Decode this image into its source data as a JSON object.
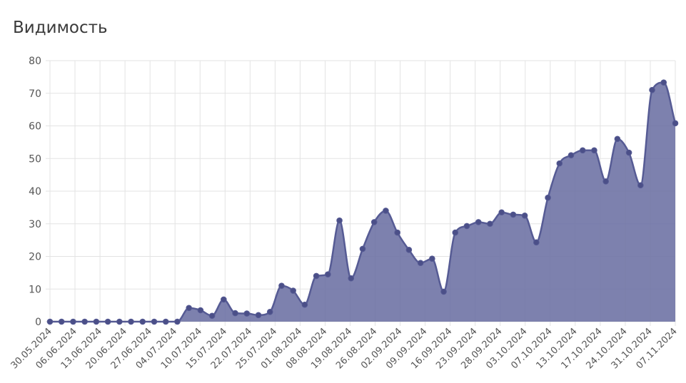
{
  "chart_data": {
    "type": "area",
    "title": "Видимость",
    "xlabel": "",
    "ylabel": "",
    "ylim": [
      0,
      80
    ],
    "yticks": [
      0,
      10,
      20,
      30,
      40,
      50,
      60,
      70,
      80
    ],
    "grid": true,
    "legend": "none",
    "colors": {
      "line": "#565b94",
      "fill": "#6b6fa3",
      "point": "#4b4f88",
      "grid": "#e3e3e3"
    },
    "x_tick_labels": [
      "30.05.2024",
      "06.06.2024",
      "13.06.2024",
      "20.06.2024",
      "27.06.2024",
      "04.07.2024",
      "10.07.2024",
      "15.07.2024",
      "22.07.2024",
      "25.07.2024",
      "01.08.2024",
      "08.08.2024",
      "19.08.2024",
      "26.08.2024",
      "02.09.2024",
      "09.09.2024",
      "16.09.2024",
      "23.09.2024",
      "28.09.2024",
      "03.10.2024",
      "07.10.2024",
      "13.10.2024",
      "17.10.2024",
      "24.10.2024",
      "31.10.2024",
      "07.11.2024"
    ],
    "series": [
      {
        "values": [
          0,
          0,
          0,
          0,
          0,
          0,
          0,
          0,
          0,
          0,
          0,
          0,
          4.2,
          3.5,
          1.8,
          6.8,
          2.6,
          2.5,
          2,
          3,
          11,
          9.5,
          5.2,
          14,
          14.5,
          31,
          13.3,
          22.3,
          30.5,
          34,
          27.3,
          22,
          18,
          19.3,
          9.2,
          27.3,
          29.3,
          30.5,
          30,
          33.5,
          32.8,
          32.5,
          24.3,
          38,
          48.5,
          51,
          52.5,
          52.5,
          43,
          56,
          51.8,
          41.8,
          71,
          73.3,
          60.8
        ]
      }
    ]
  }
}
